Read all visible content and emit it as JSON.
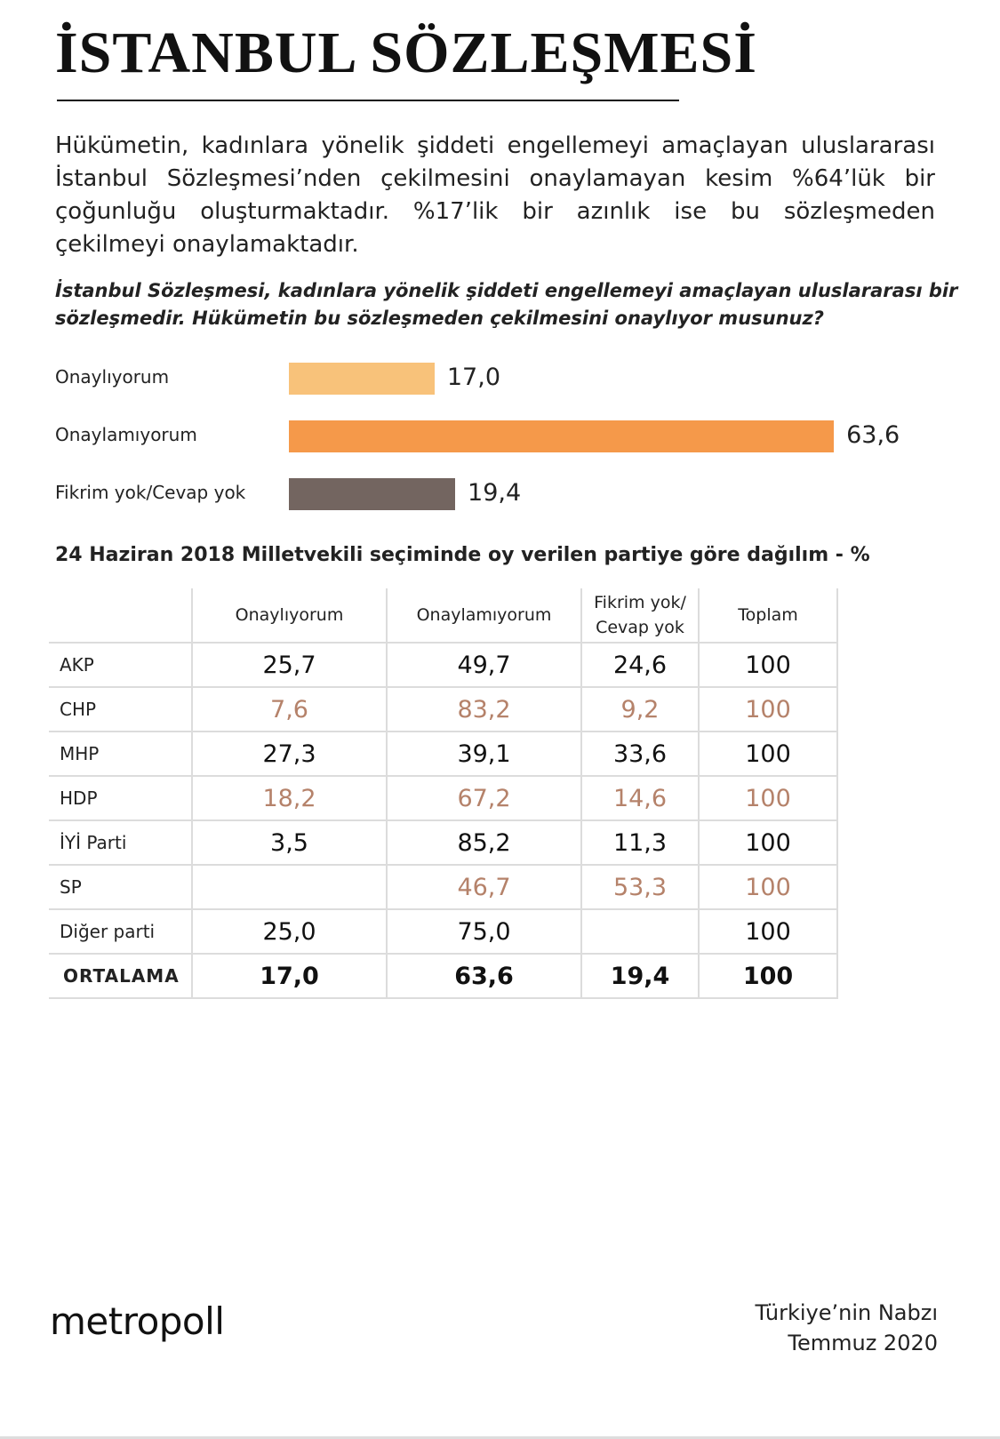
{
  "title": "İSTANBUL SÖZLEŞMESİ",
  "intro": "Hükümetin, kadınlara yönelik şiddeti engellemeyi amaçlayan uluslararası İstanbul Sözleşmesi’nden çekilmesini onaylamayan kesim %64’lük bir çoğunluğu oluşturmaktadır. %17’lik bir azınlık ise bu sözleşmeden çekilmeyi onaylamaktadır.",
  "question_line1": "İstanbul Sözleşmesi, kadınlara yönelik şiddeti engellemeyi amaçlayan uluslararası bir",
  "question_line2": "sözleşmedir. Hükümetin bu sözleşmeden çekilmesini onaylıyor musunuz?",
  "chart_data": [
    {
      "type": "bar",
      "orientation": "horizontal",
      "categories": [
        "Onaylıyorum",
        "Onaylamıyorum",
        "Fikrim yok/Cevap yok"
      ],
      "values": [
        17.0,
        63.6,
        19.4
      ],
      "value_labels": [
        "17,0",
        "63,6",
        "19,4"
      ],
      "colors": [
        "#f8c27a",
        "#f5994a",
        "#736560"
      ],
      "xlim": [
        0,
        100
      ],
      "grid": false
    },
    {
      "type": "table",
      "title": "24 Haziran 2018 Milletvekili seçiminde oy verilen partiye göre dağılım - %",
      "columns": [
        "",
        "Onaylıyorum",
        "Onaylamıyorum",
        "Fikrim yok/ Cevap yok",
        "Toplam"
      ],
      "column_lines": [
        [
          "Onaylıyorum"
        ],
        [
          "Onaylamıyorum"
        ],
        [
          "Fikrim yok/",
          "Cevap yok"
        ],
        [
          "Toplam"
        ]
      ],
      "rows": [
        {
          "party": "AKP",
          "values": [
            "25,7",
            "49,7",
            "24,6",
            "100"
          ]
        },
        {
          "party": "CHP",
          "values": [
            "7,6",
            "83,2",
            "9,2",
            "100"
          ]
        },
        {
          "party": "MHP",
          "values": [
            "27,3",
            "39,1",
            "33,6",
            "100"
          ]
        },
        {
          "party": "HDP",
          "values": [
            "18,2",
            "67,2",
            "14,6",
            "100"
          ]
        },
        {
          "party": "İYİ Parti",
          "values": [
            "3,5",
            "85,2",
            "11,3",
            "100"
          ]
        },
        {
          "party": "SP",
          "values": [
            "",
            "46,7",
            "53,3",
            "100"
          ]
        },
        {
          "party": "Diğer parti",
          "values": [
            "25,0",
            "75,0",
            "",
            "100"
          ]
        },
        {
          "party": "ORTALAMA",
          "values": [
            "17,0",
            "63,6",
            "19,4",
            "100"
          ]
        }
      ],
      "alternate_text_color": "#b5826a"
    }
  ],
  "footer": {
    "logo": "metropoll",
    "source_line1": "Türkiye’nin Nabzı",
    "source_line2": "Temmuz 2020"
  }
}
